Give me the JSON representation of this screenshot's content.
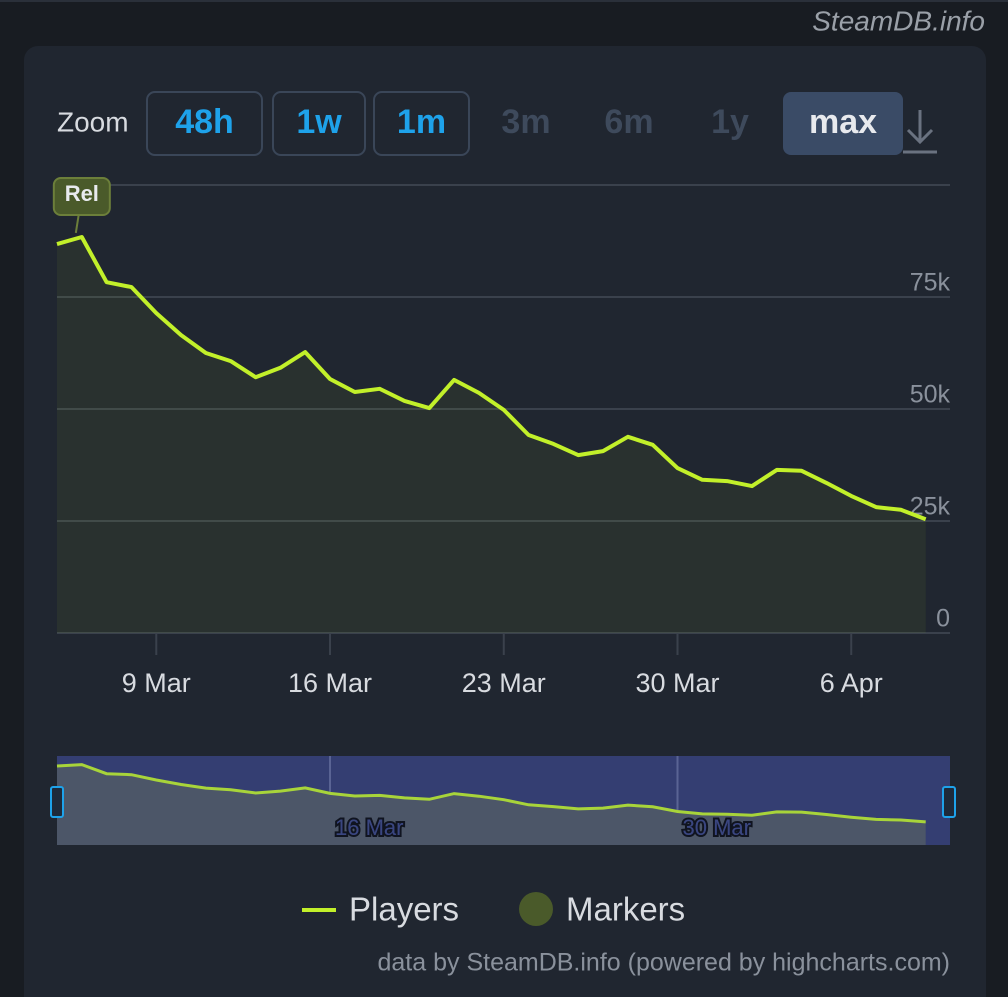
{
  "watermark": "SteamDB.info",
  "zoom": {
    "label": "Zoom",
    "buttons": [
      {
        "label": "48h",
        "enabled": true
      },
      {
        "label": "1w",
        "enabled": true
      },
      {
        "label": "1m",
        "enabled": true
      },
      {
        "label": "3m",
        "enabled": false
      },
      {
        "label": "6m",
        "enabled": false
      },
      {
        "label": "1y",
        "enabled": false
      },
      {
        "label": "max",
        "enabled": true,
        "selected": true
      }
    ]
  },
  "chart_data": {
    "type": "line",
    "area": true,
    "grid": true,
    "x": [
      "5 Mar",
      "6 Mar",
      "7 Mar",
      "8 Mar",
      "9 Mar",
      "10 Mar",
      "11 Mar",
      "12 Mar",
      "13 Mar",
      "14 Mar",
      "15 Mar",
      "16 Mar",
      "17 Mar",
      "18 Mar",
      "19 Mar",
      "20 Mar",
      "21 Mar",
      "22 Mar",
      "23 Mar",
      "24 Mar",
      "25 Mar",
      "26 Mar",
      "27 Mar",
      "28 Mar",
      "29 Mar",
      "30 Mar",
      "31 Mar",
      "1 Apr",
      "2 Apr",
      "3 Apr",
      "4 Apr",
      "5 Apr",
      "6 Apr",
      "7 Apr",
      "8 Apr",
      "9 Apr"
    ],
    "series": [
      {
        "name": "Players",
        "color": "#c2f02a",
        "values": [
          86800,
          88400,
          78300,
          77200,
          71400,
          66500,
          62500,
          60700,
          57100,
          59200,
          62700,
          56700,
          53800,
          54500,
          51800,
          50200,
          56500,
          53600,
          49800,
          44200,
          42200,
          39700,
          40600,
          43800,
          42000,
          36800,
          34200,
          33900,
          32800,
          36400,
          36200,
          33500,
          30600,
          28100,
          27500,
          25400
        ]
      }
    ],
    "markers": {
      "name": "Markers",
      "color": "#4a5a2a",
      "flags": [
        {
          "x": "6 Mar",
          "label": "Rel"
        }
      ]
    },
    "xticks": [
      "9 Mar",
      "16 Mar",
      "23 Mar",
      "30 Mar",
      "6 Apr"
    ],
    "navigator_ticks": [
      "16 Mar",
      "30 Mar"
    ],
    "ylim": [
      0,
      100000
    ],
    "yticks": [
      0,
      {
        "value": 25000,
        "label": "25k"
      },
      {
        "value": 50000,
        "label": "50k"
      },
      {
        "value": 75000,
        "label": "75k"
      }
    ],
    "credits": "data by SteamDB.info (powered by highcharts.com)"
  }
}
